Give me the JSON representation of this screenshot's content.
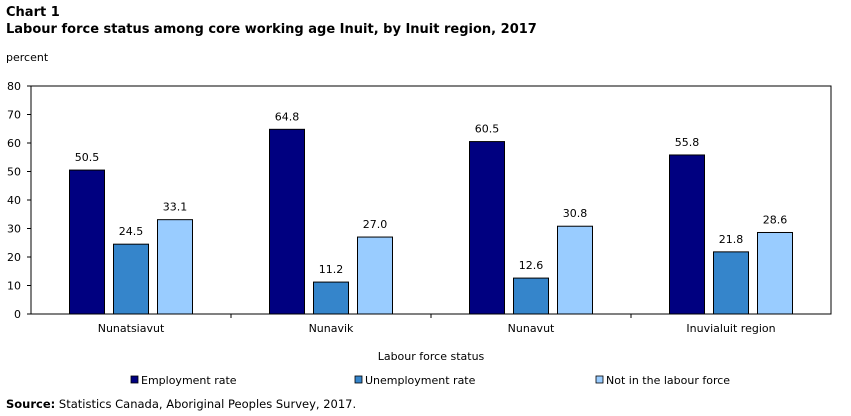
{
  "chart_number": "Chart 1",
  "chart_data": {
    "type": "bar",
    "title": "Labour force status among core working age Inuit, by Inuit region, 2017",
    "ylabel": "percent",
    "xlabel": "Labour force status",
    "ylim": [
      0,
      80
    ],
    "yticks": [
      0,
      10,
      20,
      30,
      40,
      50,
      60,
      70,
      80
    ],
    "categories": [
      "Nunatsiavut",
      "Nunavik",
      "Nunavut",
      "Inuvialuit region"
    ],
    "series": [
      {
        "name": "Employment rate",
        "color": "#000080",
        "values": [
          50.5,
          64.8,
          60.5,
          55.8
        ],
        "labels": [
          "50.5",
          "64.8",
          "60.5",
          "55.8"
        ]
      },
      {
        "name": "Unemployment rate",
        "color": "#3585cb",
        "values": [
          24.5,
          11.2,
          12.6,
          21.8
        ],
        "labels": [
          "24.5",
          "11.2",
          "12.6",
          "21.8"
        ]
      },
      {
        "name": "Not in the labour force",
        "color": "#99ccff",
        "values": [
          33.1,
          27.0,
          30.8,
          28.6
        ],
        "labels": [
          "33.1",
          "27.0",
          "30.8",
          "28.6"
        ]
      }
    ],
    "legend_position": "bottom"
  },
  "source": {
    "label": "Source:",
    "text": "Statistics Canada, Aboriginal Peoples Survey, 2017."
  }
}
